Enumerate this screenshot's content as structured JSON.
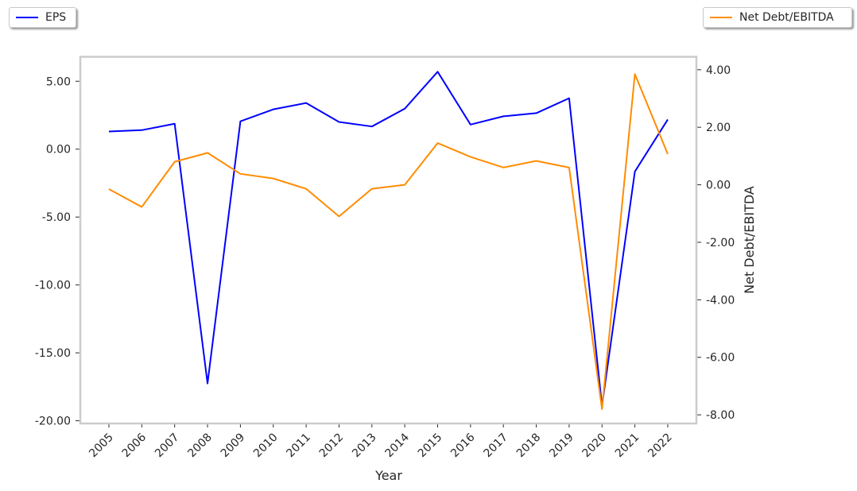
{
  "chart_data": {
    "type": "line",
    "xlabel": "Year",
    "ylabel_left": "",
    "ylabel_right": "Net Debt/EBITDA",
    "categories": [
      "2005",
      "2006",
      "2007",
      "2008",
      "2009",
      "2010",
      "2011",
      "2012",
      "2013",
      "2014",
      "2015",
      "2016",
      "2017",
      "2018",
      "2019",
      "2020",
      "2021",
      "2022"
    ],
    "series": [
      {
        "name": "EPS",
        "axis": "left",
        "color": "#0000ff",
        "values": [
          1.3,
          1.4,
          1.87,
          -17.25,
          2.05,
          2.93,
          3.4,
          2.0,
          1.67,
          2.98,
          5.7,
          1.81,
          2.42,
          2.65,
          3.75,
          -18.9,
          -1.65,
          2.18
        ]
      },
      {
        "name": "Net Debt/EBITDA",
        "axis": "right",
        "color": "#ff8c00",
        "values": [
          -0.15,
          -0.77,
          0.8,
          1.11,
          0.38,
          0.22,
          -0.14,
          -1.1,
          -0.14,
          0.0,
          1.45,
          0.97,
          0.6,
          0.83,
          0.6,
          -7.8,
          3.85,
          1.07
        ]
      }
    ],
    "ylim_left": [
      -20.2,
      6.8
    ],
    "ylim_right": [
      -8.3,
      4.45
    ],
    "yticks_left": [
      5.0,
      0.0,
      -5.0,
      -10.0,
      -15.0,
      -20.0
    ],
    "ytick_labels_left": [
      "5.00",
      "0.00",
      "-5.00",
      "-10.00",
      "-15.00",
      "-20.00"
    ],
    "yticks_right": [
      4.0,
      2.0,
      0.0,
      -2.0,
      -4.0,
      -6.0,
      -8.0
    ],
    "ytick_labels_right": [
      "4.00",
      "2.00",
      "0.00",
      "-2.00",
      "-4.00",
      "-6.00",
      "-8.00"
    ],
    "legend": [
      {
        "label": "EPS",
        "color": "#0000ff",
        "placement": "top-left"
      },
      {
        "label": "Net Debt/EBITDA",
        "color": "#ff8c00",
        "placement": "top-right"
      }
    ],
    "grid": false
  }
}
